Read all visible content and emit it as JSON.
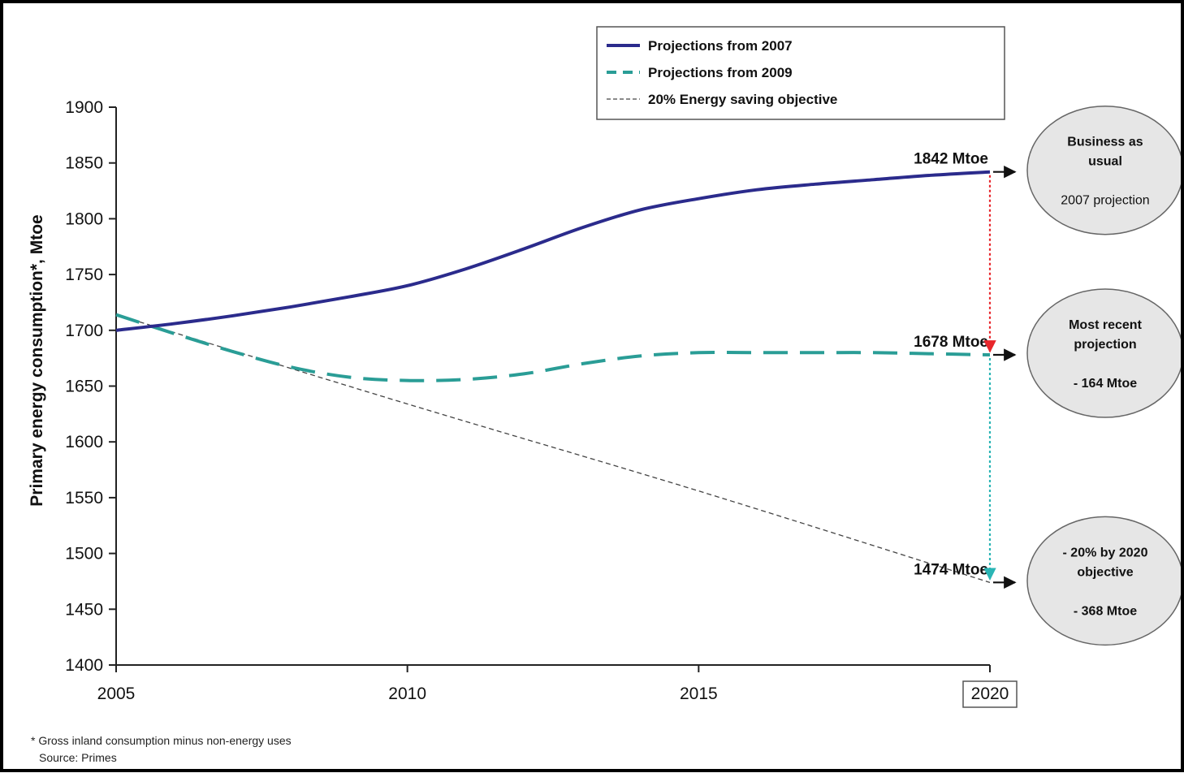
{
  "chart_data": {
    "type": "line",
    "ylabel": "Primary energy consumption*, Mtoe",
    "xlabel": "",
    "xlim": [
      2005,
      2020
    ],
    "ylim": [
      1400,
      1900
    ],
    "x_ticks": [
      "2005",
      "2010",
      "2015",
      "2020"
    ],
    "y_ticks": [
      "1400",
      "1450",
      "1500",
      "1550",
      "1600",
      "1650",
      "1700",
      "1750",
      "1800",
      "1850",
      "1900"
    ],
    "grid": false,
    "legend_position": "top-center",
    "series": [
      {
        "name": "Projections from 2007",
        "color": "#2b2b8c",
        "style": "solid",
        "x": [
          2005,
          2006,
          2007,
          2008,
          2009,
          2010,
          2011,
          2012,
          2013,
          2014,
          2015,
          2016,
          2017,
          2018,
          2019,
          2020
        ],
        "y": [
          1700,
          1706,
          1713,
          1721,
          1730,
          1740,
          1755,
          1773,
          1792,
          1808,
          1818,
          1826,
          1831,
          1835,
          1839,
          1842
        ]
      },
      {
        "name": "Projections from 2009",
        "color": "#2a9d96",
        "style": "dashed",
        "x": [
          2005,
          2006,
          2007,
          2008,
          2009,
          2010,
          2011,
          2012,
          2013,
          2014,
          2015,
          2016,
          2017,
          2018,
          2019,
          2020
        ],
        "y": [
          1714,
          1697,
          1681,
          1667,
          1658,
          1655,
          1656,
          1661,
          1670,
          1677,
          1680,
          1680,
          1680,
          1680,
          1679,
          1678
        ]
      },
      {
        "name": "20% Energy saving objective",
        "color": "#444444",
        "style": "thin-dashed",
        "x": [
          2005,
          2010,
          2015,
          2020
        ],
        "y": [
          1714,
          1634,
          1556,
          1474
        ]
      }
    ],
    "annotations": [
      {
        "text": "1842 Mtoe",
        "x": 2020,
        "y": 1842
      },
      {
        "text": "1678 Mtoe",
        "x": 2020,
        "y": 1678
      },
      {
        "text": "1474 Mtoe",
        "x": 2020,
        "y": 1474
      }
    ],
    "gaps": [
      {
        "from": 1842,
        "to": 1678,
        "color": "#e8262b"
      },
      {
        "from": 1678,
        "to": 1474,
        "color": "#2ab5b5"
      }
    ],
    "bubbles": [
      {
        "line1": "Business as",
        "line2": "usual",
        "line3": "2007 projection",
        "y": 1842
      },
      {
        "line1": "Most recent",
        "line2": "projection",
        "line3": "- 164 Mtoe",
        "y": 1678
      },
      {
        "line1": "- 20% by 2020",
        "line2": "objective",
        "line3": "- 368 Mtoe",
        "y": 1474
      }
    ]
  },
  "footnote": {
    "line1": "* Gross inland consumption minus non-energy uses",
    "line2": "Source: Primes"
  }
}
